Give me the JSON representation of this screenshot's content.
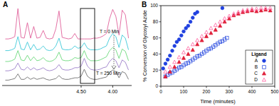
{
  "chart_data": [
    {
      "type": "line",
      "title": "A",
      "x": [
        5.7,
        5.65,
        5.6,
        5.55,
        5.5,
        5.45,
        5.4,
        5.35,
        5.3,
        5.25,
        5.2,
        5.15,
        5.1,
        5.05,
        5.0,
        4.95,
        4.9,
        4.85,
        4.8,
        4.75,
        4.7,
        4.65,
        4.6,
        4.55,
        4.5,
        4.45,
        4.4,
        4.35,
        4.3,
        4.25,
        4.2,
        4.15,
        4.1,
        4.05,
        4.0,
        3.95,
        3.9,
        3.85,
        3.8,
        3.75
      ],
      "series": [
        {
          "color": "#e0609a",
          "values": [
            59,
            59,
            60,
            62,
            98,
            61,
            60,
            80,
            60,
            75,
            60,
            61,
            70,
            60,
            59,
            60,
            72,
            95,
            61,
            60,
            59,
            60,
            66,
            59,
            59,
            59,
            59,
            59,
            60,
            60,
            61,
            63,
            66,
            85,
            97,
            88,
            64,
            96,
            90,
            60
          ]
        },
        {
          "color": "#3cc8d8",
          "values": [
            44,
            44,
            45,
            47,
            62,
            46,
            45,
            55,
            45,
            52,
            45,
            46,
            50,
            45,
            44,
            45,
            50,
            60,
            46,
            45,
            45,
            46,
            50,
            47,
            48,
            54,
            47,
            45,
            45,
            45,
            46,
            48,
            50,
            60,
            66,
            62,
            48,
            64,
            60,
            45
          ]
        },
        {
          "color": "#6ad87a",
          "values": [
            30,
            30,
            31,
            33,
            44,
            32,
            31,
            38,
            31,
            36,
            31,
            32,
            35,
            31,
            30,
            31,
            34,
            42,
            32,
            31,
            31,
            32,
            35,
            34,
            35,
            44,
            34,
            31,
            31,
            31,
            32,
            34,
            36,
            44,
            48,
            45,
            34,
            46,
            43,
            31
          ]
        },
        {
          "color": "#9b7ec8",
          "values": [
            18,
            18,
            19,
            21,
            28,
            20,
            19,
            23,
            19,
            22,
            19,
            20,
            22,
            19,
            18,
            19,
            21,
            26,
            20,
            19,
            19,
            20,
            22,
            22,
            24,
            34,
            24,
            20,
            19,
            19,
            20,
            22,
            23,
            30,
            34,
            31,
            22,
            32,
            29,
            19
          ]
        },
        {
          "color": "#707070",
          "values": [
            6,
            6,
            7,
            8,
            14,
            7,
            7,
            10,
            7,
            9,
            7,
            8,
            9,
            7,
            6,
            7,
            8,
            12,
            8,
            7,
            7,
            8,
            9,
            9,
            11,
            20,
            11,
            8,
            7,
            7,
            8,
            9,
            10,
            16,
            19,
            17,
            9,
            17,
            15,
            7
          ]
        }
      ],
      "xlim": [
        5.75,
        3.7
      ],
      "xticks": [
        {
          "value": 4.5,
          "label": "4.50"
        },
        {
          "value": 4.0,
          "label": "4.00"
        }
      ],
      "ylim": [
        0,
        100
      ],
      "tick_labels": "x",
      "annotations": [
        "T = 0 Min",
        "T = 250 Min"
      ]
    },
    {
      "type": "scatter",
      "title": "B",
      "xlabel": "Time (minutes)",
      "ylabel": "% Conversion of Glycosyl Azide",
      "legend_title": "Ligand",
      "legend": "lower right",
      "series": [
        {
          "name": "A",
          "color": "#2040e0",
          "marker": "circle",
          "x": [
            10,
            20,
            30,
            40,
            50,
            60,
            70,
            80,
            90,
            100,
            110,
            120,
            130,
            140,
            150,
            160,
            270
          ],
          "values": [
            22,
            28,
            33,
            38,
            44,
            50,
            55,
            58,
            63,
            68,
            72,
            75,
            80,
            85,
            90,
            92,
            97
          ]
        },
        {
          "name": "B",
          "color": "#3050e0",
          "marker": "open-square",
          "x": [
            20,
            30,
            40,
            50,
            60,
            70,
            80,
            90,
            100,
            110,
            120,
            130,
            140,
            150,
            160,
            170,
            180,
            190,
            200,
            210,
            220,
            230,
            240,
            250,
            260,
            270,
            280,
            290
          ],
          "values": [
            12,
            14,
            16,
            17,
            19,
            21,
            23,
            24,
            26,
            28,
            29,
            31,
            33,
            35,
            37,
            38,
            40,
            42,
            44,
            46,
            47,
            49,
            51,
            53,
            55,
            56,
            58,
            60
          ]
        },
        {
          "name": "C",
          "color": "#e0203a",
          "marker": "triangle",
          "x": [
            20,
            40,
            60,
            80,
            100,
            120,
            140,
            160,
            180,
            200,
            220,
            240,
            260,
            280,
            300,
            320,
            340,
            360,
            380,
            400,
            420,
            440,
            460,
            480
          ],
          "values": [
            12,
            18,
            24,
            30,
            35,
            40,
            45,
            52,
            57,
            62,
            66,
            70,
            75,
            80,
            84,
            88,
            90,
            92,
            93,
            94,
            93,
            94,
            95,
            94
          ]
        },
        {
          "name": "D",
          "color": "#ff60a0",
          "marker": "open-triangle",
          "x": [
            20,
            40,
            60,
            80,
            100,
            120,
            140,
            160,
            180,
            200,
            220,
            240,
            260,
            280,
            300,
            320,
            340,
            360,
            380,
            400,
            420,
            440,
            460,
            480
          ],
          "values": [
            18,
            24,
            30,
            36,
            42,
            47,
            52,
            57,
            62,
            67,
            72,
            76,
            80,
            84,
            87,
            90,
            92,
            94,
            95,
            96,
            96,
            97,
            97,
            97
          ]
        }
      ],
      "xlim": [
        0,
        500
      ],
      "xticks": [
        0,
        100,
        200,
        300,
        400,
        500
      ],
      "ylim": [
        0,
        100
      ],
      "yticks": [
        0,
        20,
        40,
        60,
        80,
        100
      ]
    }
  ]
}
